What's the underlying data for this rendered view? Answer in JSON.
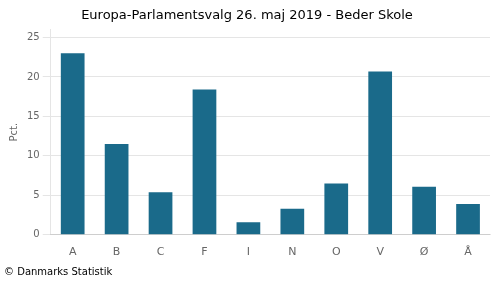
{
  "chart_data": {
    "type": "bar",
    "title": "Europa-Parlamentsvalg 26. maj 2019 - Beder Skole",
    "categories": [
      "A",
      "B",
      "C",
      "F",
      "I",
      "N",
      "O",
      "V",
      "Ø",
      "Å"
    ],
    "values": [
      23.0,
      11.5,
      5.4,
      18.4,
      1.6,
      3.3,
      6.5,
      20.7,
      6.1,
      3.9
    ],
    "color": "#1a6a8a",
    "ylabel": "Pct.",
    "footer": "© Danmarks Statistik",
    "ylim": [
      0,
      26
    ],
    "yticks": [
      0,
      5,
      10,
      15,
      20,
      25
    ],
    "grid": true
  }
}
